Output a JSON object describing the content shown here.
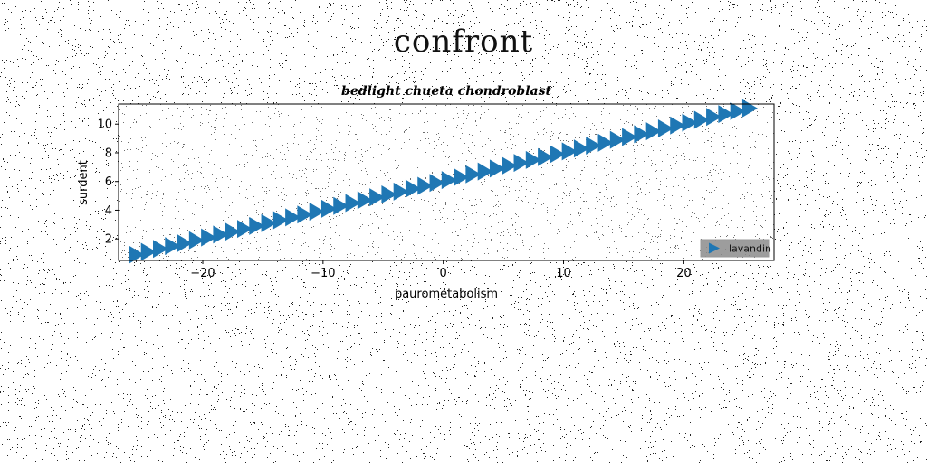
{
  "suptitle": "confront",
  "chart_data": {
    "type": "scatter",
    "title": "bedlight chueta chondroblast",
    "xlabel": "paurometabolism",
    "ylabel": "surdent",
    "xlim": [
      -27,
      27.5
    ],
    "ylim": [
      0.5,
      11.4
    ],
    "xticks": [
      -20,
      -10,
      0,
      10,
      20
    ],
    "xtick_labels": [
      "−20",
      "−10",
      "0",
      "10",
      "20"
    ],
    "yticks": [
      2,
      4,
      6,
      8,
      10
    ],
    "ytick_labels": [
      "2",
      "4",
      "6",
      "8",
      "10"
    ],
    "marker": "triangle-right",
    "grid": false,
    "legend_position": "lower-right",
    "series": [
      {
        "name": "lavandin",
        "color": "#1f77b4",
        "x": [
          -25.5,
          -24.5,
          -23.5,
          -22.5,
          -21.5,
          -20.5,
          -19.5,
          -18.5,
          -17.5,
          -16.5,
          -15.5,
          -14.5,
          -13.5,
          -12.5,
          -11.5,
          -10.5,
          -9.5,
          -8.5,
          -7.5,
          -6.5,
          -5.5,
          -4.5,
          -3.5,
          -2.5,
          -1.5,
          -0.5,
          0.5,
          1.5,
          2.5,
          3.5,
          4.5,
          5.5,
          6.5,
          7.5,
          8.5,
          9.5,
          10.5,
          11.5,
          12.5,
          13.5,
          14.5,
          15.5,
          16.5,
          17.5,
          18.5,
          19.5,
          20.5,
          21.5,
          22.5,
          23.5,
          24.5,
          25.5
        ],
        "y": [
          0.9,
          1.1,
          1.3,
          1.5,
          1.7,
          1.9,
          2.1,
          2.3,
          2.5,
          2.7,
          2.9,
          3.1,
          3.3,
          3.5,
          3.7,
          3.9,
          4.1,
          4.3,
          4.5,
          4.7,
          4.9,
          5.1,
          5.3,
          5.5,
          5.7,
          5.9,
          6.1,
          6.3,
          6.5,
          6.7,
          6.9,
          7.1,
          7.3,
          7.5,
          7.7,
          7.9,
          8.1,
          8.3,
          8.5,
          8.7,
          8.9,
          9.1,
          9.3,
          9.5,
          9.7,
          9.9,
          10.1,
          10.3,
          10.5,
          10.7,
          10.9,
          11.1
        ]
      }
    ]
  }
}
